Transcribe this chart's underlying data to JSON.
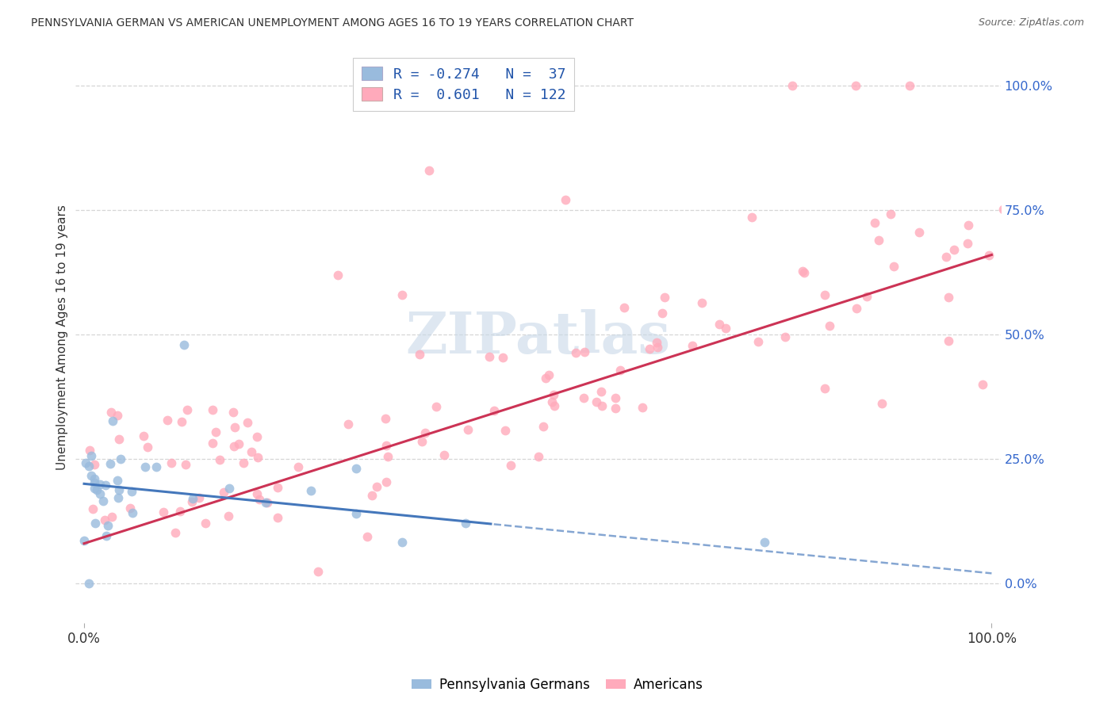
{
  "title": "PENNSYLVANIA GERMAN VS AMERICAN UNEMPLOYMENT AMONG AGES 16 TO 19 YEARS CORRELATION CHART",
  "source": "Source: ZipAtlas.com",
  "ylabel": "Unemployment Among Ages 16 to 19 years",
  "yaxis_values": [
    0,
    25,
    50,
    75,
    100
  ],
  "legend_label1": "Pennsylvania Germans",
  "legend_label2": "Americans",
  "legend_line1": "R = -0.274   N =  37",
  "legend_line2": "R =  0.601   N = 122",
  "color_blue": "#99bbdd",
  "color_pink": "#ffaabb",
  "color_blue_line": "#4477bb",
  "color_pink_line": "#cc3355",
  "color_grid": "#cccccc",
  "background_color": "#ffffff",
  "watermark_color": "#c8d8e8",
  "blue_intercept": 20.0,
  "blue_slope": -0.18,
  "pink_intercept": 8.0,
  "pink_slope": 0.58
}
